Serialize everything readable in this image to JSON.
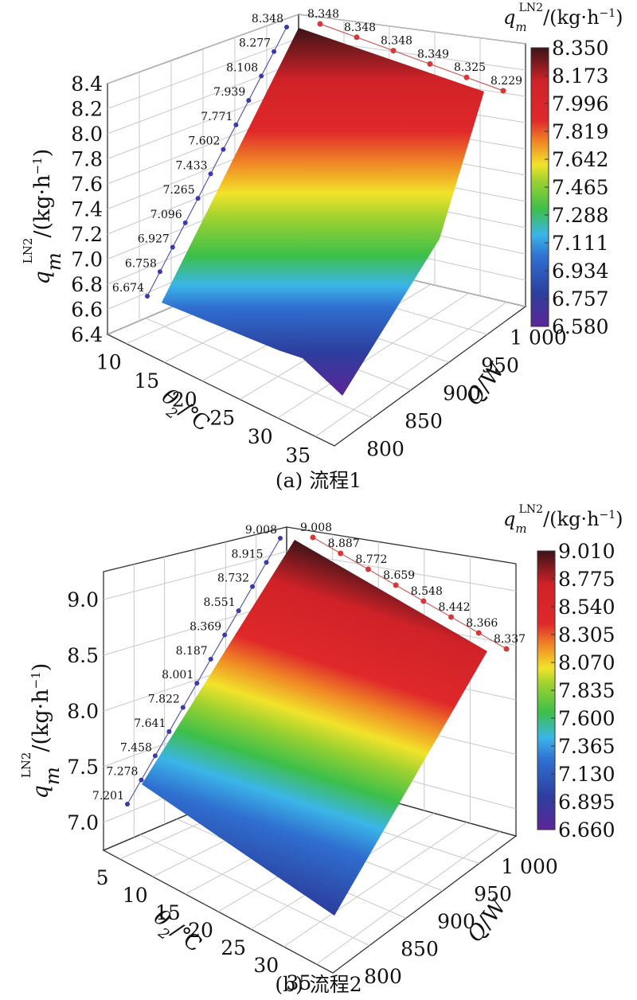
{
  "chart_data": [
    {
      "type": "surface",
      "caption": "(a) 流程1",
      "xlabel": "θ₂/℃",
      "ylabel": "Q/W",
      "zlabel": "qmLN2/(kg·h⁻¹)",
      "z_ticks": [
        "6.4",
        "6.6",
        "6.8",
        "7.0",
        "7.2",
        "7.4",
        "7.6",
        "7.8",
        "8.0",
        "8.2",
        "8.4"
      ],
      "x_ticks": [
        "10",
        "15",
        "20",
        "25",
        "30",
        "35"
      ],
      "y_ticks": [
        "800",
        "850",
        "900",
        "950",
        "1 000"
      ],
      "left_projection_values": [
        "6.674",
        "6.758",
        "6.927",
        "7.096",
        "7.265",
        "7.433",
        "7.602",
        "7.771",
        "7.939",
        "8.108",
        "8.277",
        "8.348"
      ],
      "back_projection_values": [
        "8.348",
        "8.348",
        "8.348",
        "8.349",
        "8.325",
        "8.229"
      ],
      "colorbar_title": "qmLN2/(kg·h⁻¹)",
      "colorbar_ticks": [
        "8.350",
        "8.173",
        "7.996",
        "7.819",
        "7.642",
        "7.465",
        "7.288",
        "7.111",
        "6.934",
        "6.757",
        "6.580"
      ],
      "grid": true
    },
    {
      "type": "surface",
      "caption": "(b) 流程2",
      "xlabel": "θ₂/℃",
      "ylabel": "Q/W",
      "zlabel": "qmLN2/(kg·h⁻¹)",
      "z_ticks": [
        "7.0",
        "7.5",
        "8.0",
        "8.5",
        "9.0"
      ],
      "x_ticks": [
        "5",
        "10",
        "15",
        "20",
        "25",
        "30",
        "35"
      ],
      "y_ticks": [
        "800",
        "850",
        "900",
        "950",
        "1 000"
      ],
      "left_projection_values": [
        "7.201",
        "7.278",
        "7.458",
        "7.641",
        "7.822",
        "8.001",
        "8.187",
        "8.369",
        "8.551",
        "8.732",
        "8.915",
        "9.008"
      ],
      "back_projection_values": [
        "9.008",
        "8.887",
        "8.772",
        "8.659",
        "8.548",
        "8.442",
        "8.366",
        "8.337"
      ],
      "colorbar_title": "qmLN2/(kg·h⁻¹)",
      "colorbar_ticks": [
        "9.010",
        "8.775",
        "8.540",
        "8.305",
        "8.070",
        "7.835",
        "7.600",
        "7.365",
        "7.130",
        "6.895",
        "6.660"
      ],
      "grid": true
    }
  ]
}
